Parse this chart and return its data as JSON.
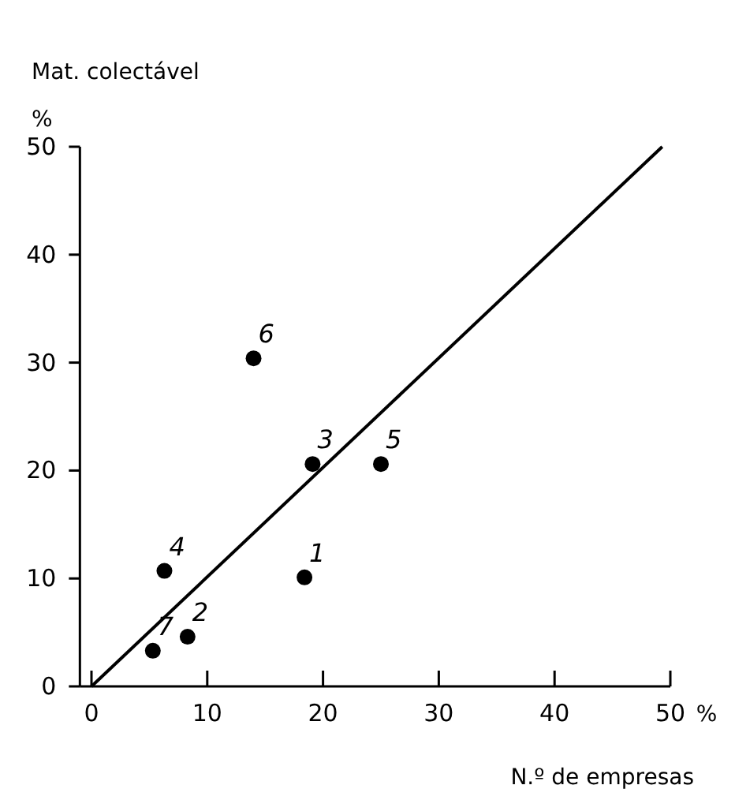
{
  "chart_data": {
    "type": "scatter",
    "ylabel": "Mat. colectável",
    "xlabel": "N.º de empresas",
    "xlim": [
      -1,
      50
    ],
    "ylim": [
      0,
      50
    ],
    "xticks": [
      0,
      10,
      20,
      30,
      40,
      50
    ],
    "yticks": [
      0,
      10,
      20,
      30,
      40,
      50
    ],
    "series": [
      {
        "color": "#000000",
        "marker": "circle",
        "x": [
          18.4,
          8.3,
          19.1,
          6.3,
          25.0,
          14.0,
          5.3
        ],
        "values": [
          10.1,
          4.6,
          20.6,
          10.7,
          20.6,
          30.4,
          3.3
        ]
      },
      {
        "type": "line",
        "color": "#000000",
        "marker": "none",
        "line_style": "solid",
        "x": [
          0,
          49.3
        ],
        "values": [
          0,
          50
        ]
      }
    ],
    "annotations": [
      "%",
      "%",
      {
        "text": "1",
        "x": 18.4,
        "y": 10.1
      },
      {
        "text": "2",
        "x": 8.3,
        "y": 4.6
      },
      {
        "text": "3",
        "x": 19.1,
        "y": 20.6
      },
      {
        "text": "4",
        "x": 6.3,
        "y": 10.7
      },
      {
        "text": "5",
        "x": 25.0,
        "y": 20.6
      },
      {
        "text": "6",
        "x": 14.0,
        "y": 30.4
      },
      {
        "text": "7",
        "x": 5.3,
        "y": 3.3
      }
    ],
    "grid": false
  }
}
